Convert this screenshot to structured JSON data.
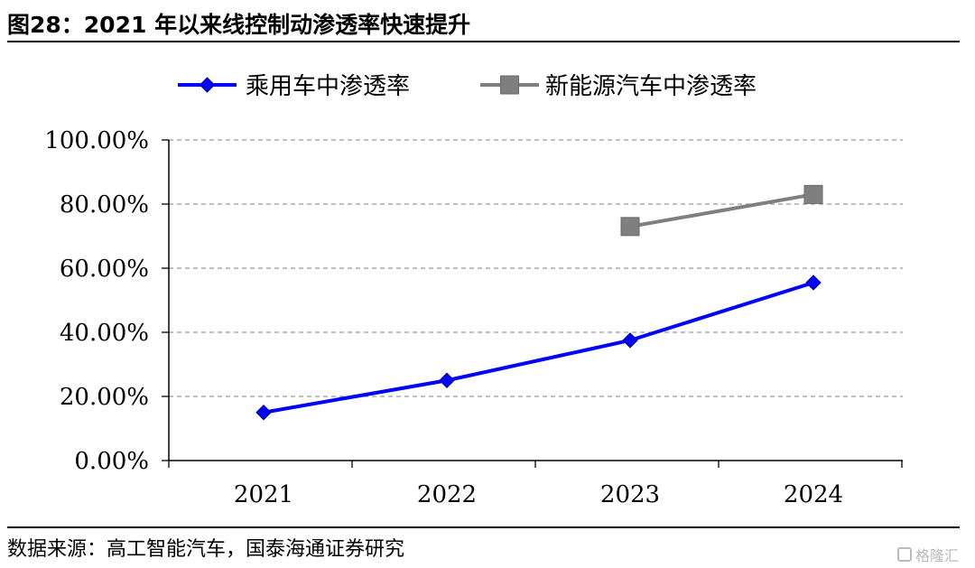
{
  "figure": {
    "title": "图28：2021 年以来线控制动渗透率快速提升",
    "source": "数据来源：高工智能汽车，国泰海通证券研究",
    "watermark": "格隆汇"
  },
  "chart_data": {
    "type": "line",
    "title": "",
    "xlabel": "",
    "ylabel": "",
    "x": [
      "2021",
      "2022",
      "2023",
      "2024"
    ],
    "ylim": [
      0,
      100
    ],
    "yticks": [
      0,
      20,
      40,
      60,
      80,
      100
    ],
    "ytick_labels": [
      "0.00%",
      "20.00%",
      "40.00%",
      "60.00%",
      "80.00%",
      "100.00%"
    ],
    "grid": "horizontal dashed",
    "legend_position": "top",
    "series": [
      {
        "name": "乘用车中渗透率",
        "values": [
          15.0,
          25.0,
          37.5,
          55.5
        ],
        "color": "#0000ff",
        "marker": "diamond"
      },
      {
        "name": "新能源汽车中渗透率",
        "values": [
          null,
          null,
          73.0,
          83.0
        ],
        "color": "#7f7f7f",
        "marker": "square"
      }
    ]
  }
}
